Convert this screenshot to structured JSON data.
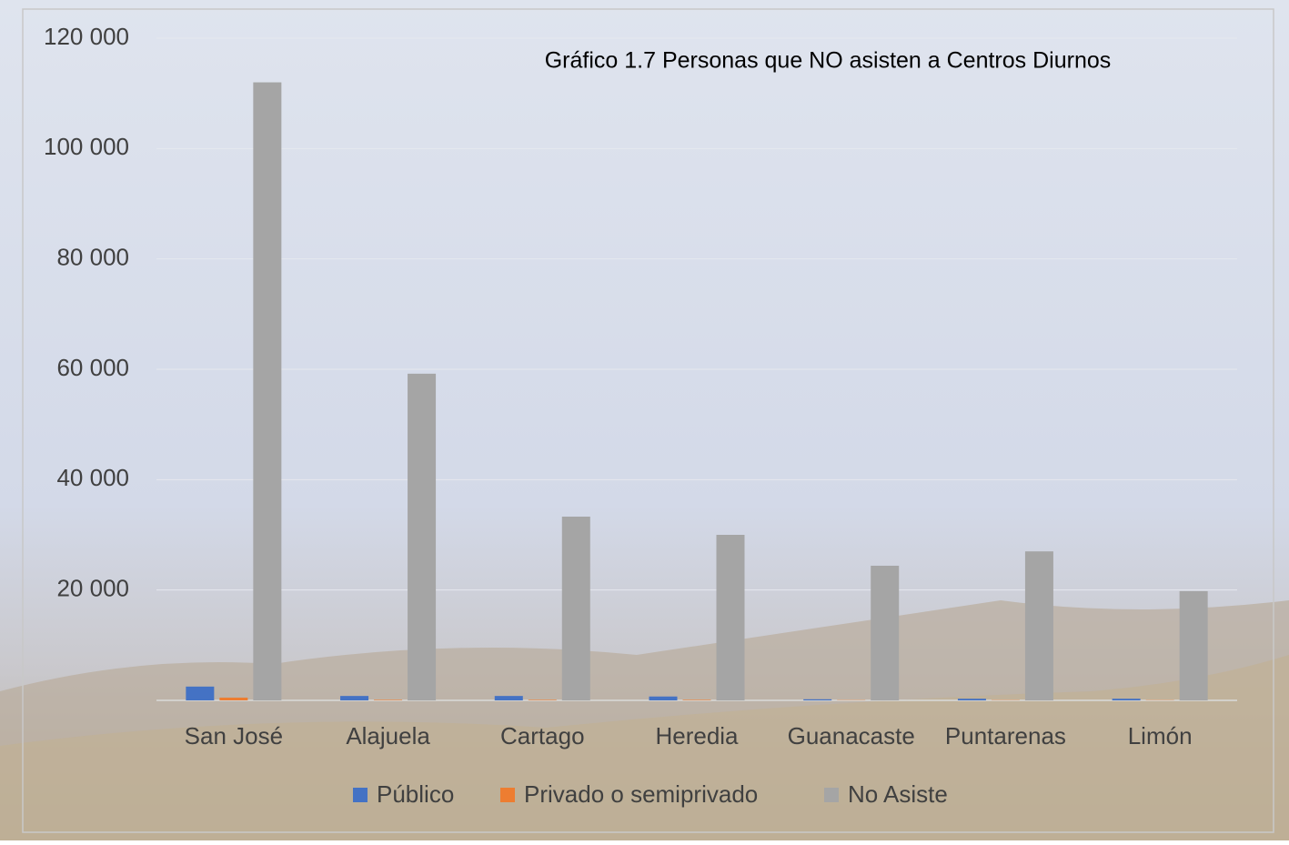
{
  "chart_data": {
    "type": "bar",
    "title": "Gráfico 1.7 Personas que NO asisten a Centros Diurnos",
    "categories": [
      "San José",
      "Alajuela",
      "Cartago",
      "Heredia",
      "Guanacaste",
      "Puntarenas",
      "Limón"
    ],
    "series": [
      {
        "name": "Público",
        "color": "#4472c4",
        "values": [
          2500,
          800,
          800,
          700,
          200,
          300,
          300
        ]
      },
      {
        "name": "Privado o semiprivado",
        "color": "#ed7d31",
        "values": [
          500,
          100,
          100,
          100,
          50,
          50,
          50
        ]
      },
      {
        "name": "No Asiste",
        "color": "#a5a5a5",
        "values": [
          112000,
          59200,
          33300,
          30000,
          24400,
          27000,
          19800
        ]
      }
    ],
    "ylim": [
      0,
      120000
    ],
    "yticks": [
      {
        "value": 20000,
        "label": "20 000"
      },
      {
        "value": 40000,
        "label": "40 000"
      },
      {
        "value": 60000,
        "label": "60 000"
      },
      {
        "value": 80000,
        "label": "80 000"
      },
      {
        "value": 100000,
        "label": "100 000"
      },
      {
        "value": 120000,
        "label": "120 000"
      }
    ],
    "grid": true,
    "legend": "bottom"
  }
}
